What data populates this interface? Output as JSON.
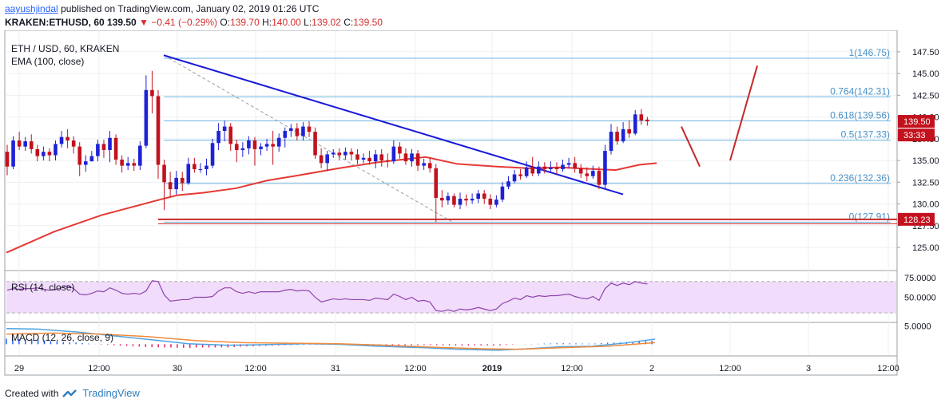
{
  "header": {
    "author": "aayushjindal",
    "published_text": "published on TradingView.com, January 02, 2019 01:26 UTC",
    "symbol_line": "KRAKEN:ETHUSD, 60",
    "last": "139.50",
    "change": "−0.41 (−0.29%)",
    "o_label": "O:",
    "o_value": "139.70",
    "h_label": "H:",
    "h_value": "140.00",
    "l_label": "L:",
    "l_value": "139.02",
    "c_label": "C:",
    "c_value": "139.50"
  },
  "pane_labels": {
    "main_symbol": "ETH / USD, 60, KRAKEN",
    "ema": "EMA (100, close)",
    "rsi": "RSI (14, close)",
    "macd": "MACD (12, 26, close, 9)"
  },
  "footer": {
    "created_with": "Created with",
    "brand": "TradingView"
  },
  "colors": {
    "up": "#1e22d6",
    "down": "#c2121e",
    "ema": "#e53935",
    "trendline": "#1a1ad8",
    "fib": "#6fb3e0",
    "hline": "#c62828",
    "rsi": "#8e44ad",
    "rsi_band": "#f1dcfb",
    "macd": "#4fa3e0",
    "signal": "#f08a3c",
    "hist_neg": "#e91e63",
    "hist_pos": "#2962ff"
  },
  "chart_data": {
    "type": "candlestick",
    "y_ticks": [
      "147.50",
      "145.00",
      "142.50",
      "140.00",
      "137.50",
      "135.00",
      "132.50",
      "130.00",
      "127.50",
      "125.00"
    ],
    "x_ticks": [
      "29",
      "12:00",
      "30",
      "12:00",
      "31",
      "12:00",
      "2019",
      "12:00",
      "2",
      "12:00",
      "3",
      "12:00"
    ],
    "ylim": [
      122.8,
      149.6
    ],
    "fib_levels": [
      {
        "label": "1(146.75)",
        "value": 146.75
      },
      {
        "label": "0.764(142.31)",
        "value": 142.31
      },
      {
        "label": "0.618(139.56)",
        "value": 139.56
      },
      {
        "label": "0.5(137.33)",
        "value": 137.33
      },
      {
        "label": "0.236(132.36)",
        "value": 132.36
      },
      {
        "label": "0(127.91)",
        "value": 127.91
      }
    ],
    "price_tags": [
      {
        "text": "139.50",
        "value": 139.5
      },
      {
        "text": "33:33",
        "value": 138.3
      },
      {
        "text": "128.23",
        "value": 128.23
      }
    ],
    "support_line": 128.23,
    "candles": [
      [
        136.0,
        134.3,
        136.8,
        133.3
      ],
      [
        134.3,
        137.3,
        137.8,
        134.0
      ],
      [
        137.3,
        136.6,
        138.3,
        136.2
      ],
      [
        136.6,
        137.2,
        137.7,
        136.1
      ],
      [
        137.2,
        136.3,
        138.0,
        135.8
      ],
      [
        136.3,
        135.5,
        136.8,
        134.9
      ],
      [
        135.5,
        136.0,
        136.6,
        135.0
      ],
      [
        136.0,
        135.6,
        136.4,
        134.9
      ],
      [
        135.6,
        136.9,
        137.3,
        135.0
      ],
      [
        136.9,
        137.7,
        138.4,
        136.5
      ],
      [
        137.7,
        137.3,
        138.6,
        136.4
      ],
      [
        137.3,
        136.6,
        137.8,
        135.8
      ],
      [
        136.6,
        134.5,
        137.1,
        133.2
      ],
      [
        134.5,
        134.9,
        135.6,
        133.7
      ],
      [
        134.9,
        135.5,
        136.1,
        134.9
      ],
      [
        135.5,
        136.9,
        137.4,
        134.9
      ],
      [
        136.9,
        136.2,
        137.4,
        135.3
      ],
      [
        136.2,
        137.6,
        138.4,
        134.8
      ],
      [
        137.6,
        135.1,
        138.0,
        134.5
      ],
      [
        135.1,
        134.4,
        135.6,
        133.6
      ],
      [
        134.4,
        134.7,
        135.4,
        133.9
      ],
      [
        134.7,
        134.4,
        135.2,
        133.8
      ],
      [
        134.4,
        136.7,
        137.2,
        133.9
      ],
      [
        136.7,
        143.1,
        144.8,
        136.4
      ],
      [
        143.1,
        142.4,
        145.3,
        140.4
      ],
      [
        142.4,
        134.5,
        143.1,
        132.9
      ],
      [
        134.5,
        132.5,
        135.1,
        129.3
      ],
      [
        132.5,
        131.7,
        133.7,
        130.8
      ],
      [
        131.7,
        133.0,
        133.8,
        131.1
      ],
      [
        133.0,
        132.4,
        133.7,
        131.5
      ],
      [
        132.4,
        134.6,
        135.3,
        132.2
      ],
      [
        134.6,
        134.0,
        135.3,
        133.6
      ],
      [
        134.0,
        134.0,
        134.7,
        133.6
      ],
      [
        134.0,
        134.4,
        135.2,
        133.3
      ],
      [
        134.4,
        137.0,
        137.5,
        134.1
      ],
      [
        137.0,
        138.4,
        139.3,
        136.2
      ],
      [
        138.4,
        138.9,
        139.6,
        137.2
      ],
      [
        138.9,
        136.9,
        139.3,
        136.1
      ],
      [
        136.9,
        136.2,
        137.4,
        134.8
      ],
      [
        136.2,
        136.4,
        137.1,
        135.4
      ],
      [
        136.4,
        137.3,
        137.8,
        135.7
      ],
      [
        137.3,
        136.3,
        137.7,
        134.4
      ],
      [
        136.3,
        136.6,
        137.0,
        135.6
      ],
      [
        136.6,
        136.9,
        137.5,
        136.1
      ],
      [
        136.9,
        136.6,
        138.4,
        134.5
      ],
      [
        136.6,
        137.6,
        138.1,
        136.0
      ],
      [
        137.6,
        138.4,
        138.8,
        136.5
      ],
      [
        138.4,
        138.7,
        139.2,
        137.7
      ],
      [
        138.7,
        137.8,
        139.3,
        137.3
      ],
      [
        137.8,
        138.9,
        139.4,
        137.3
      ],
      [
        138.9,
        138.3,
        139.5,
        137.7
      ],
      [
        138.3,
        135.6,
        138.8,
        135.2
      ],
      [
        135.6,
        134.7,
        136.4,
        134.1
      ],
      [
        134.7,
        135.7,
        136.1,
        133.8
      ],
      [
        135.7,
        135.9,
        136.3,
        135.3
      ],
      [
        135.9,
        135.6,
        136.4,
        135.0
      ],
      [
        135.6,
        136.0,
        136.5,
        135.1
      ],
      [
        136.0,
        135.7,
        136.4,
        135.0
      ],
      [
        135.7,
        135.1,
        136.3,
        134.6
      ],
      [
        135.1,
        135.3,
        135.8,
        134.7
      ],
      [
        135.3,
        134.9,
        136.1,
        134.5
      ],
      [
        134.9,
        135.7,
        136.2,
        134.1
      ],
      [
        135.7,
        135.0,
        136.3,
        134.3
      ],
      [
        135.0,
        134.9,
        135.8,
        134.2
      ],
      [
        134.9,
        136.6,
        137.3,
        134.6
      ],
      [
        136.6,
        135.8,
        137.1,
        135.2
      ],
      [
        135.8,
        134.9,
        136.4,
        134.5
      ],
      [
        134.9,
        135.8,
        136.3,
        134.3
      ],
      [
        135.8,
        134.4,
        136.2,
        133.8
      ],
      [
        134.4,
        134.7,
        135.2,
        133.9
      ],
      [
        134.7,
        134.1,
        135.3,
        133.6
      ],
      [
        134.1,
        130.7,
        134.6,
        127.9
      ],
      [
        130.7,
        130.4,
        131.6,
        129.6
      ],
      [
        130.4,
        130.9,
        131.3,
        129.9
      ],
      [
        130.9,
        129.9,
        131.2,
        129.6
      ],
      [
        129.9,
        130.6,
        131.3,
        129.4
      ],
      [
        130.6,
        130.4,
        131.1,
        129.8
      ],
      [
        130.4,
        130.6,
        131.2,
        130.0
      ],
      [
        130.6,
        131.2,
        131.6,
        130.1
      ],
      [
        131.2,
        130.6,
        131.6,
        130.0
      ],
      [
        130.6,
        129.9,
        131.1,
        129.4
      ],
      [
        129.9,
        130.5,
        131.0,
        129.6
      ],
      [
        130.5,
        132.0,
        132.5,
        130.2
      ],
      [
        132.0,
        132.6,
        133.2,
        131.7
      ],
      [
        132.6,
        133.4,
        133.9,
        132.4
      ],
      [
        133.4,
        133.2,
        134.0,
        132.8
      ],
      [
        133.2,
        134.2,
        134.9,
        133.0
      ],
      [
        134.2,
        133.5,
        135.4,
        133.2
      ],
      [
        133.5,
        134.3,
        134.9,
        133.2
      ],
      [
        134.3,
        134.0,
        134.8,
        133.5
      ],
      [
        134.0,
        134.2,
        134.9,
        133.6
      ],
      [
        134.2,
        134.0,
        134.8,
        133.4
      ],
      [
        134.0,
        134.5,
        135.1,
        133.7
      ],
      [
        134.5,
        134.7,
        135.3,
        134.1
      ],
      [
        134.7,
        134.1,
        135.4,
        133.6
      ],
      [
        134.1,
        133.5,
        134.6,
        133.0
      ],
      [
        133.5,
        133.2,
        134.2,
        132.6
      ],
      [
        133.2,
        133.8,
        134.4,
        132.9
      ],
      [
        133.8,
        132.2,
        134.3,
        131.7
      ],
      [
        132.2,
        136.1,
        136.8,
        131.8
      ],
      [
        136.1,
        138.3,
        139.2,
        135.7
      ],
      [
        138.3,
        137.2,
        138.9,
        136.8
      ],
      [
        137.2,
        138.6,
        139.4,
        137.0
      ],
      [
        138.6,
        138.1,
        139.6,
        137.6
      ],
      [
        138.1,
        140.3,
        140.8,
        137.9
      ],
      [
        140.3,
        139.6,
        140.9,
        139.1
      ],
      [
        139.7,
        139.5,
        140.0,
        139.0
      ]
    ],
    "ema_points": [
      [
        0,
        124.4
      ],
      [
        60,
        126.8
      ],
      [
        120,
        128.7
      ],
      [
        190,
        130.4
      ],
      [
        216,
        131.0
      ],
      [
        250,
        131.3
      ],
      [
        290,
        131.8
      ],
      [
        330,
        132.7
      ],
      [
        370,
        133.3
      ],
      [
        420,
        134.1
      ],
      [
        470,
        134.8
      ],
      [
        530,
        135.4
      ],
      [
        570,
        134.6
      ],
      [
        620,
        134.3
      ],
      [
        660,
        134.1
      ],
      [
        700,
        134.2
      ],
      [
        745,
        134.0
      ],
      [
        770,
        133.9
      ],
      [
        800,
        134.5
      ],
      [
        822,
        134.7
      ]
    ],
    "ema_x_domain": [
      0,
      822
    ],
    "trendline": [
      [
        205,
        147.1
      ],
      [
        780,
        131.1
      ]
    ],
    "dashed_line": [
      [
        205,
        147.1
      ],
      [
        565,
        128.0
      ]
    ],
    "projection_lines": [
      [
        [
          853,
          138.9
        ],
        [
          876,
          134.3
        ]
      ],
      [
        [
          914,
          135.0
        ],
        [
          948,
          145.9
        ]
      ]
    ],
    "rsi": {
      "ticks": [
        "75.0000",
        "50.0000"
      ],
      "band": [
        30,
        70
      ],
      "series": [
        59,
        61,
        60,
        61,
        61,
        62,
        60,
        59,
        60,
        62,
        65,
        61,
        54,
        53,
        55,
        58,
        57,
        62,
        59,
        55,
        54,
        55,
        54,
        58,
        71,
        70,
        53,
        45,
        46,
        47,
        47,
        50,
        50,
        50,
        51,
        58,
        62,
        62,
        57,
        55,
        57,
        55,
        57,
        57,
        57,
        57,
        59,
        60,
        58,
        59,
        58,
        50,
        44,
        46,
        48,
        47,
        48,
        47,
        47,
        47,
        46,
        49,
        48,
        47,
        54,
        51,
        47,
        50,
        45,
        46,
        44,
        33,
        32,
        34,
        32,
        35,
        34,
        35,
        37,
        35,
        33,
        35,
        42,
        45,
        49,
        47,
        52,
        50,
        52,
        51,
        52,
        52,
        53,
        54,
        51,
        49,
        48,
        51,
        46,
        61,
        68,
        65,
        68,
        66,
        70,
        68,
        67
      ]
    },
    "macd": {
      "tick": "5.0000",
      "macd_line": [
        [
          0,
          1.55
        ],
        [
          40,
          1.5
        ],
        [
          90,
          1.2
        ],
        [
          140,
          0.8
        ],
        [
          200,
          0.3
        ],
        [
          230,
          0.05
        ],
        [
          280,
          -0.1
        ],
        [
          320,
          -0.05
        ],
        [
          380,
          0.05
        ],
        [
          420,
          0.0
        ],
        [
          470,
          -0.2
        ],
        [
          530,
          -0.35
        ],
        [
          570,
          -0.5
        ],
        [
          620,
          -0.6
        ],
        [
          660,
          -0.45
        ],
        [
          700,
          -0.25
        ],
        [
          740,
          -0.2
        ],
        [
          780,
          0.1
        ],
        [
          820,
          0.5
        ]
      ],
      "signal_line": [
        [
          0,
          1.0
        ],
        [
          60,
          1.1
        ],
        [
          120,
          1.0
        ],
        [
          180,
          0.75
        ],
        [
          240,
          0.35
        ],
        [
          300,
          0.15
        ],
        [
          360,
          0.1
        ],
        [
          420,
          0.05
        ],
        [
          480,
          -0.1
        ],
        [
          540,
          -0.3
        ],
        [
          600,
          -0.45
        ],
        [
          650,
          -0.5
        ],
        [
          700,
          -0.35
        ],
        [
          760,
          -0.2
        ],
        [
          820,
          0.15
        ]
      ],
      "x_domain": [
        0,
        822
      ],
      "ylim": [
        -1.0,
        2.0
      ]
    }
  }
}
